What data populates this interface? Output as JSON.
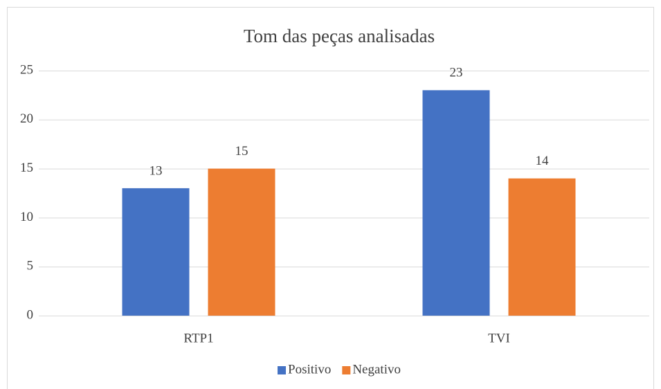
{
  "chart_data": {
    "type": "bar",
    "title": "Tom das peças analisadas",
    "categories": [
      "RTP1",
      "TVI"
    ],
    "series": [
      {
        "name": "Positivo",
        "color": "#4472c4",
        "values": [
          13,
          23
        ]
      },
      {
        "name": "Negativo",
        "color": "#ed7d31",
        "values": [
          15,
          14
        ]
      }
    ],
    "ylim": [
      0,
      25
    ],
    "yticks": [
      0,
      5,
      10,
      15,
      20,
      25
    ],
    "grid": true,
    "legend": "bottom"
  }
}
